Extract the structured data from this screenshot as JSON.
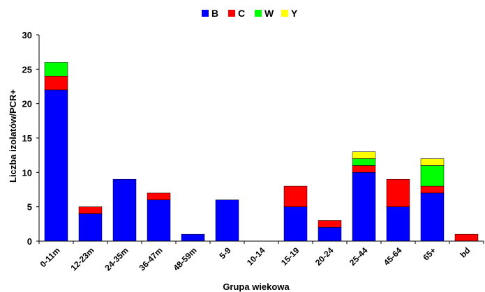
{
  "chart_data": {
    "type": "bar",
    "stacked": true,
    "title": "",
    "xlabel": "Grupa wiekowa",
    "ylabel": "Liczba izolatów/PCR+",
    "ylim": [
      0,
      30
    ],
    "yticks": [
      "0",
      "5",
      "10",
      "15",
      "20",
      "25",
      "30"
    ],
    "grid": false,
    "legend_position": "top-center",
    "categories": [
      "0-11m",
      "12-23m",
      "24-35m",
      "36-47m",
      "48-59m",
      "5-9",
      "10-14",
      "15-19",
      "20-24",
      "25-44",
      "45-64",
      "65+",
      "bd"
    ],
    "series": [
      {
        "name": "B",
        "color": "#0000FF",
        "values": [
          22,
          4,
          9,
          6,
          1,
          6,
          0,
          5,
          2,
          10,
          5,
          7,
          0
        ]
      },
      {
        "name": "C",
        "color": "#FF0000",
        "values": [
          2,
          1,
          0,
          1,
          0,
          0,
          0,
          3,
          1,
          1,
          4,
          1,
          1
        ]
      },
      {
        "name": "W",
        "color": "#00FF00",
        "values": [
          2,
          0,
          0,
          0,
          0,
          0,
          0,
          0,
          0,
          1,
          0,
          3,
          0
        ]
      },
      {
        "name": "Y",
        "color": "#FFFF00",
        "values": [
          0,
          0,
          0,
          0,
          0,
          0,
          0,
          0,
          0,
          1,
          0,
          1,
          0
        ]
      }
    ]
  }
}
